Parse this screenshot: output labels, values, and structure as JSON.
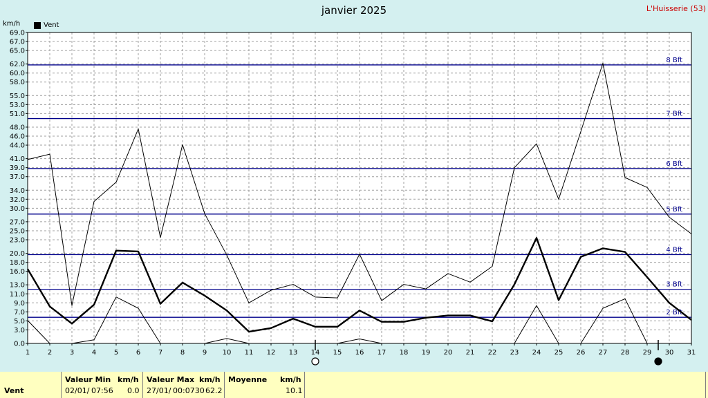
{
  "header": {
    "title": "janvier 2025",
    "station": "L'Huisserie (53)",
    "unit": "km/h"
  },
  "legend": {
    "label": "Vent",
    "color": "#000000"
  },
  "colors": {
    "background": "#d4f0f0",
    "plot_bg": "#ffffff",
    "beaufort_line": "#00008b",
    "footer_bg": "#ffffc0"
  },
  "chart_data": {
    "type": "line",
    "title": "janvier 2025",
    "xlabel": "",
    "ylabel": "km/h",
    "x": [
      1,
      2,
      3,
      4,
      5,
      6,
      7,
      8,
      9,
      10,
      11,
      12,
      13,
      14,
      15,
      16,
      17,
      18,
      19,
      20,
      21,
      22,
      23,
      24,
      25,
      26,
      27,
      28,
      29,
      30,
      31
    ],
    "xlim": [
      1,
      31
    ],
    "ylim": [
      0,
      69
    ],
    "y_ticks": [
      "0.0",
      "3.0",
      "5.0",
      "7.0",
      "9.0",
      "11.0",
      "13.0",
      "16.0",
      "18.0",
      "20.0",
      "23.0",
      "25.0",
      "27.0",
      "30.0",
      "32.0",
      "34.0",
      "37.0",
      "39.0",
      "41.0",
      "44.0",
      "46.0",
      "48.0",
      "51.0",
      "53.0",
      "55.0",
      "58.0",
      "60.0",
      "62.0",
      "65.0",
      "67.0",
      "69.0"
    ],
    "grid": true,
    "legend_position": "top-left",
    "series": [
      {
        "name": "Vent",
        "role": "mean",
        "values": [
          16.5,
          8.2,
          4.4,
          8.6,
          20.6,
          20.4,
          8.8,
          13.5,
          10.6,
          7.3,
          2.6,
          3.4,
          5.5,
          3.7,
          3.7,
          7.3,
          4.8,
          4.8,
          5.7,
          6.2,
          6.2,
          4.9,
          13.1,
          23.4,
          9.6,
          19.2,
          21.1,
          20.3,
          14.7,
          9.0,
          5.2
        ]
      },
      {
        "role": "max",
        "values": [
          40.8,
          42.0,
          8.4,
          31.5,
          35.8,
          47.6,
          23.5,
          44.1,
          28.8,
          19.6,
          9.0,
          11.8,
          13.1,
          10.3,
          10.1,
          19.8,
          9.5,
          13.1,
          12.1,
          15.5,
          13.6,
          17.1,
          39.0,
          44.3,
          32.0,
          47.0,
          62.2,
          36.8,
          34.6,
          28.0,
          24.3
        ]
      },
      {
        "role": "min",
        "values": [
          5.1,
          0.0,
          0.0,
          0.8,
          10.3,
          7.8,
          0.0,
          null,
          0.0,
          1.1,
          0.0,
          null,
          null,
          null,
          0.0,
          1.0,
          0.0,
          null,
          null,
          null,
          null,
          null,
          0.0,
          8.4,
          0.0,
          0.0,
          7.8,
          9.9,
          0.0,
          null,
          null
        ]
      }
    ],
    "beaufort_lines": [
      {
        "label": "2 Bft",
        "value": 5.8
      },
      {
        "label": "3 Bft",
        "value": 12.0
      },
      {
        "label": "4 Bft",
        "value": 19.7
      },
      {
        "label": "5 Bft",
        "value": 28.7
      },
      {
        "label": "6 Bft",
        "value": 38.8
      },
      {
        "label": "7 Bft",
        "value": 49.9
      },
      {
        "label": "8 Bft",
        "value": 61.8
      }
    ],
    "moon_phases": [
      {
        "phase": "full-moon",
        "day": 14
      },
      {
        "phase": "new-moon",
        "day": 29.5
      }
    ]
  },
  "footer": {
    "row_label": "Vent",
    "min": {
      "header": "Valeur Min",
      "unit": "km/h",
      "date": "02/01/",
      "time": "07:56",
      "value": "0.0"
    },
    "max": {
      "header": "Valeur Max",
      "unit": "km/h",
      "date": "27/01/",
      "time": "00:0730",
      "value": "62.2"
    },
    "avg": {
      "header": "Moyenne",
      "unit": "km/h",
      "value": "10.1"
    }
  }
}
